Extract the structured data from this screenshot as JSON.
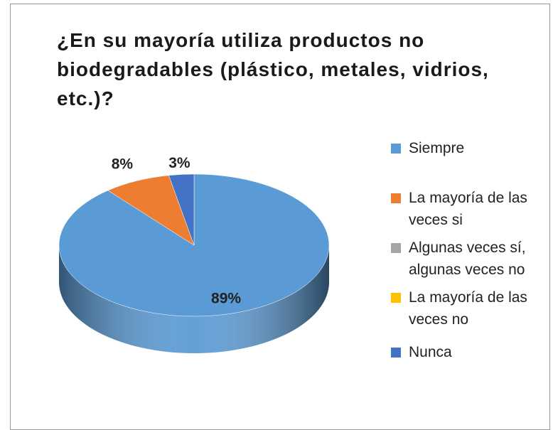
{
  "chart_data": {
    "type": "pie",
    "title": "¿En su mayoría utiliza productos no biodegradables (plástico, metales, vidrios, etc.)?",
    "categories": [
      "Siempre",
      "La mayoría de las veces si",
      "Algunas veces sí, algunas veces no",
      "La mayoría de las veces no",
      "Nunca"
    ],
    "values": [
      89,
      8,
      0,
      0,
      3
    ],
    "value_labels": [
      "89%",
      "8%",
      null,
      null,
      "3%"
    ],
    "colors": [
      "#5b9bd5",
      "#ed7d31",
      "#a5a5a5",
      "#ffc000",
      "#4472c4"
    ],
    "legend": "right"
  }
}
